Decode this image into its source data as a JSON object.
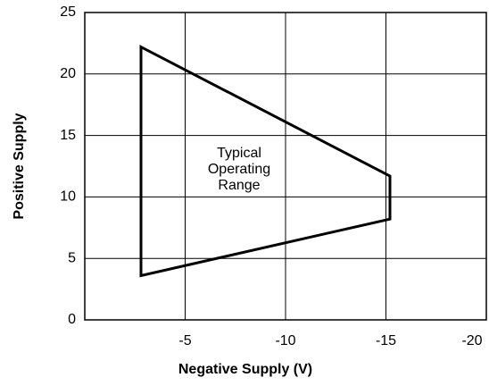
{
  "chart_data": {
    "type": "line",
    "xlabel": "Negative Supply (V)",
    "ylabel": "Positive Supply",
    "xlim": [
      0,
      -20
    ],
    "xticks": [
      -5,
      -10,
      -15,
      -20
    ],
    "ylim": [
      0,
      25
    ],
    "yticks": [
      0,
      5,
      10,
      15,
      20,
      25
    ],
    "grid": true,
    "closed": true,
    "series": [
      {
        "color": "#000000",
        "x": [
          -2.8,
          -15.2,
          -15.2,
          -2.8
        ],
        "values": [
          22.2,
          11.7,
          8.2,
          3.6
        ]
      }
    ],
    "annotation": [
      "Typical",
      "Operating",
      "Range"
    ]
  }
}
